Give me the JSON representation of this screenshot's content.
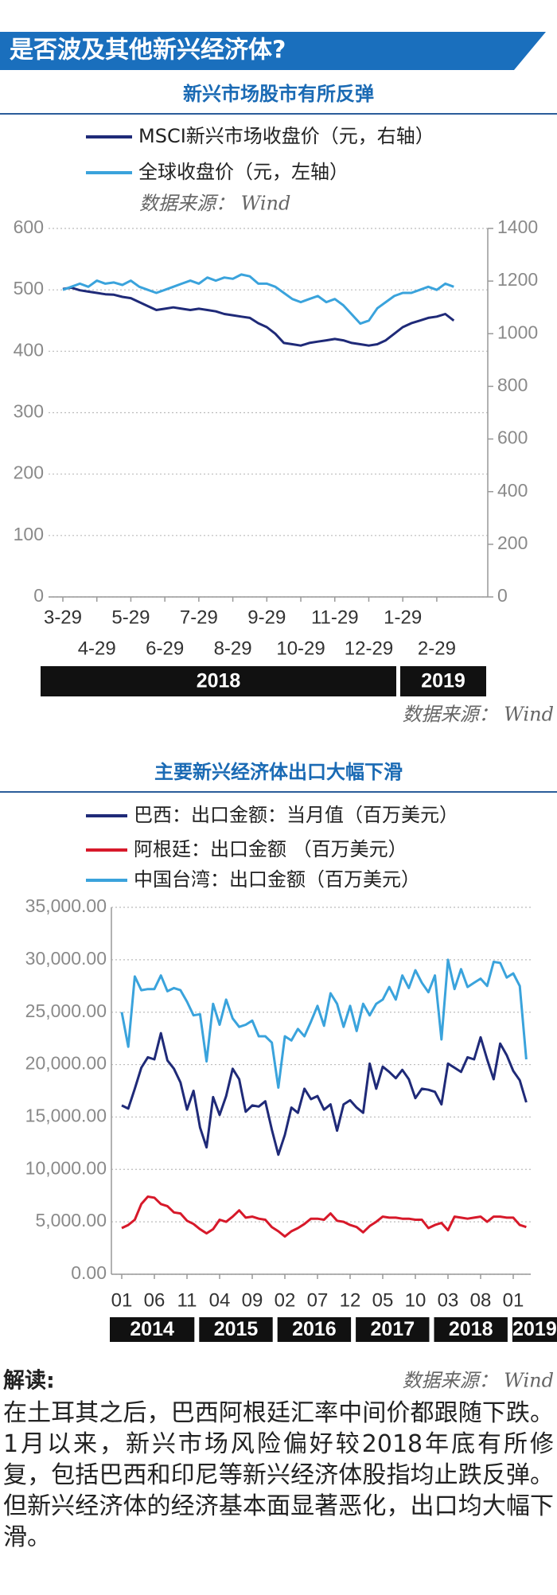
{
  "header": {
    "title": "是否波及其他新兴经济体?"
  },
  "chart_data": [
    {
      "type": "line",
      "title": "新兴市场股市有所反弹",
      "note": "数据来源：  Wind",
      "source": "数据来源：  Wind",
      "categories": [
        "3-29",
        null,
        null,
        null,
        "4-29",
        null,
        null,
        null,
        "5-29",
        null,
        null,
        null,
        "6-29",
        null,
        null,
        null,
        "7-29",
        null,
        null,
        null,
        "8-29",
        null,
        null,
        null,
        "9-29",
        null,
        null,
        null,
        "10-29",
        null,
        null,
        null,
        "11-29",
        null,
        null,
        null,
        "12-29",
        null,
        null,
        null,
        "1-29",
        null,
        null,
        null,
        "2-29",
        null,
        null
      ],
      "years": [
        "2018",
        "2019"
      ],
      "ylim": [
        0,
        600
      ],
      "yticks": [
        0,
        100,
        200,
        300,
        400,
        500,
        600
      ],
      "y2lim": [
        0,
        1400
      ],
      "y2ticks": [
        0,
        200,
        400,
        600,
        800,
        1000,
        1200,
        1400
      ],
      "grid": true,
      "series": [
        {
          "name": "MSCI新兴市场收盘价（元，右轴）",
          "color": "#1f2a78",
          "axis": "y2",
          "values": [
            1170,
            1175,
            1165,
            1160,
            1155,
            1150,
            1148,
            1140,
            1135,
            1120,
            1105,
            1090,
            1095,
            1100,
            1095,
            1090,
            1095,
            1090,
            1085,
            1075,
            1070,
            1065,
            1060,
            1040,
            1025,
            1000,
            965,
            960,
            955,
            965,
            970,
            975,
            980,
            975,
            965,
            960,
            955,
            960,
            975,
            1000,
            1025,
            1040,
            1050,
            1060,
            1065,
            1075,
            1050
          ]
        },
        {
          "name": "全球收盘价（元，左轴）",
          "color": "#3aa3dc",
          "values": [
            500,
            505,
            510,
            505,
            515,
            510,
            512,
            508,
            515,
            505,
            500,
            495,
            500,
            505,
            510,
            515,
            510,
            520,
            515,
            520,
            518,
            525,
            522,
            510,
            510,
            505,
            495,
            485,
            480,
            485,
            490,
            480,
            485,
            475,
            460,
            445,
            450,
            470,
            480,
            490,
            495,
            495,
            500,
            505,
            500,
            510,
            505
          ]
        }
      ]
    },
    {
      "type": "line",
      "title": "主要新兴经济体出口大幅下滑",
      "source": "数据来源：  Wind",
      "categories": [
        "01",
        null,
        null,
        null,
        null,
        "06",
        null,
        null,
        null,
        null,
        "11",
        null,
        null,
        null,
        null,
        "04",
        null,
        null,
        null,
        null,
        "09",
        null,
        null,
        null,
        null,
        "02",
        null,
        null,
        null,
        null,
        "07",
        null,
        null,
        null,
        null,
        "12",
        null,
        null,
        null,
        null,
        "05",
        null,
        null,
        null,
        null,
        "10",
        null,
        null,
        null,
        null,
        "03",
        null,
        null,
        null,
        null,
        "08",
        null,
        null,
        null,
        null,
        "01",
        null,
        null
      ],
      "years": [
        "2014",
        "2015",
        "2016",
        "2017",
        "2018",
        "2019"
      ],
      "ylim": [
        0,
        35000
      ],
      "yticks": [
        {
          "value": 0,
          "label": "0.00"
        },
        {
          "value": 5000,
          "label": "5,000.00"
        },
        {
          "value": 10000,
          "label": "10,000.00"
        },
        {
          "value": 15000,
          "label": "15,000.00"
        },
        {
          "value": 20000,
          "label": "20,000.00"
        },
        {
          "value": 25000,
          "label": "25,000.00"
        },
        {
          "value": 30000,
          "label": "30,000.00"
        },
        {
          "value": 35000,
          "label": "35,000.00"
        }
      ],
      "grid": true,
      "series": [
        {
          "name": "巴西：出口金额：当月值（百万美元）",
          "color": "#1f2a78",
          "values": [
            16100,
            15800,
            17700,
            19700,
            20700,
            20500,
            23000,
            20400,
            19600,
            18300,
            15700,
            17500,
            14000,
            12100,
            16900,
            15200,
            17000,
            19600,
            18600,
            15500,
            16100,
            16000,
            16500,
            13800,
            11400,
            13300,
            15900,
            15400,
            17700,
            16700,
            17000,
            15700,
            16200,
            13700,
            16200,
            16600,
            15900,
            15400,
            20100,
            17700,
            19800,
            19300,
            18700,
            19500,
            18600,
            16800,
            17700,
            17600,
            17400,
            16200,
            20100,
            19700,
            19300,
            20700,
            20500,
            22600,
            20500,
            18600,
            22000,
            20900,
            19400,
            18500,
            16400
          ]
        },
        {
          "name": "阿根廷：出口金额 （百万美元）",
          "color": "#d7192a",
          "values": [
            4400,
            4700,
            5200,
            6700,
            7400,
            7300,
            6700,
            6500,
            5900,
            5800,
            5100,
            4800,
            4300,
            3900,
            4300,
            5200,
            5000,
            5500,
            6100,
            5400,
            5500,
            5300,
            5200,
            4500,
            4100,
            3600,
            4100,
            4400,
            4800,
            5300,
            5300,
            5200,
            5800,
            5100,
            5000,
            4700,
            4500,
            4000,
            4600,
            5000,
            5500,
            5400,
            5400,
            5300,
            5300,
            5200,
            5200,
            4400,
            4700,
            4900,
            4200,
            5500,
            5400,
            5300,
            5400,
            5500,
            5000,
            5500,
            5500,
            5400,
            5400,
            4700,
            4500
          ]
        },
        {
          "name": "中国台湾：出口金额（百万美元）",
          "color": "#3aa3dc",
          "values": [
            25000,
            21700,
            28400,
            27100,
            27200,
            27200,
            28500,
            27000,
            27300,
            27100,
            26000,
            24700,
            24800,
            20300,
            25800,
            23800,
            26200,
            24400,
            23600,
            23800,
            24200,
            22700,
            22700,
            22100,
            17800,
            22700,
            22300,
            23400,
            22700,
            24100,
            25600,
            23700,
            26800,
            25800,
            23600,
            25600,
            23200,
            25800,
            24700,
            25800,
            26200,
            27400,
            26200,
            28500,
            27300,
            29000,
            27800,
            26900,
            28500,
            22400,
            30000,
            27200,
            29100,
            27400,
            27800,
            28200,
            27500,
            29800,
            29700,
            28300,
            28700,
            27500,
            20500
          ]
        }
      ]
    }
  ],
  "notes": {
    "heading": "解读:",
    "text": "在土耳其之后，巴西阿根廷汇率中间价都跟随下跌。1月以来，新兴市场风险偏好较2018年底有所修复，包括巴西和印尼等新兴经济体股指均止跌反弹。但新兴经济体的经济基本面显著恶化，出口均大幅下滑。"
  }
}
